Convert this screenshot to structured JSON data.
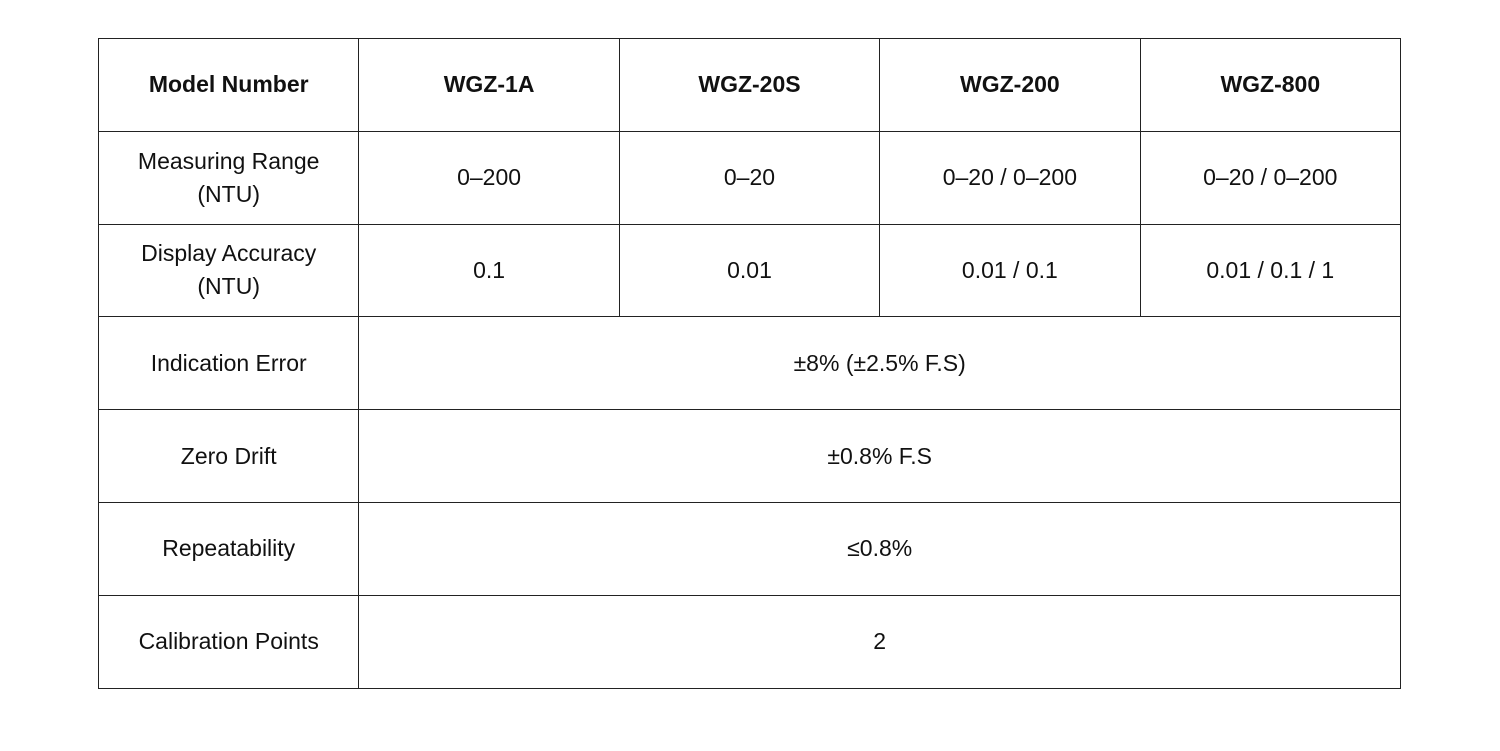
{
  "table": {
    "header": [
      "Model Number",
      "WGZ-1A",
      "WGZ-20S",
      "WGZ-200",
      "WGZ-800"
    ],
    "rows": [
      [
        "Measuring Range (NTU)",
        "0–200",
        "0–20",
        "0–20 / 0–200",
        "0–20 / 0–200"
      ],
      [
        "Display Accuracy (NTU)",
        "0.1",
        "0.01",
        "0.01 / 0.1",
        "0.01 / 0.1 / 1"
      ],
      [
        "Indication Error",
        "±8% (±2.5% F.S)"
      ],
      [
        "Zero Drift",
        "±0.8% F.S"
      ],
      [
        "Repeatability",
        "≤0.8%"
      ],
      [
        "Calibration Points",
        "2"
      ]
    ]
  }
}
